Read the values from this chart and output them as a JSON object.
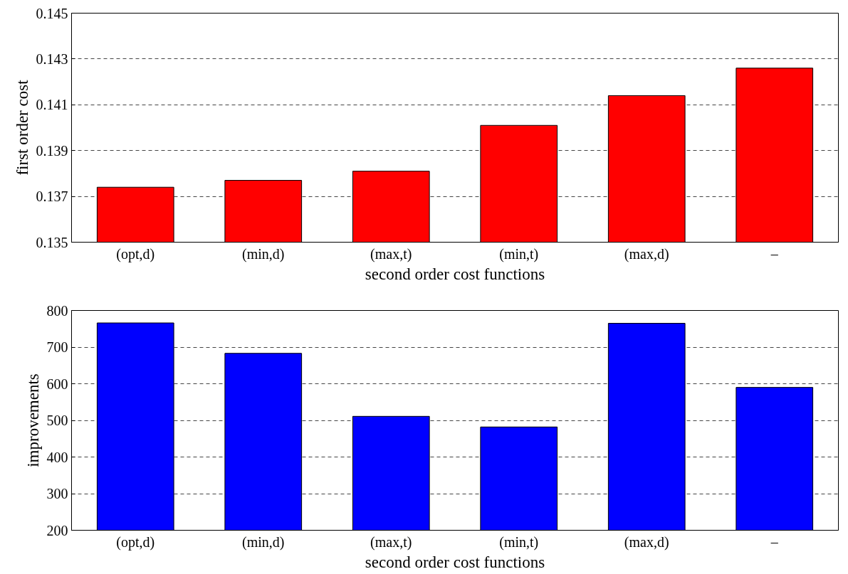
{
  "chart_data": [
    {
      "type": "bar",
      "categories": [
        "(opt,d)",
        "(min,d)",
        "(max,t)",
        "(min,t)",
        "(max,d)",
        "–"
      ],
      "values": [
        0.1374,
        0.1377,
        0.1381,
        0.1401,
        0.1414,
        0.1426
      ],
      "color": "#ff0000",
      "xlabel": "second order cost functions",
      "ylabel": "first order cost",
      "ylim": [
        0.135,
        0.145
      ],
      "yticks": [
        0.135,
        0.137,
        0.139,
        0.141,
        0.143,
        0.145
      ],
      "grid": "y"
    },
    {
      "type": "bar",
      "categories": [
        "(opt,d)",
        "(min,d)",
        "(max,t)",
        "(min,t)",
        "(max,d)",
        "–"
      ],
      "values": [
        766,
        683,
        511,
        482,
        765,
        590
      ],
      "color": "#0000ff",
      "xlabel": "second order cost functions",
      "ylabel": "improvements",
      "ylim": [
        200,
        800
      ],
      "yticks": [
        200,
        300,
        400,
        500,
        600,
        700,
        800
      ],
      "grid": "y"
    }
  ]
}
